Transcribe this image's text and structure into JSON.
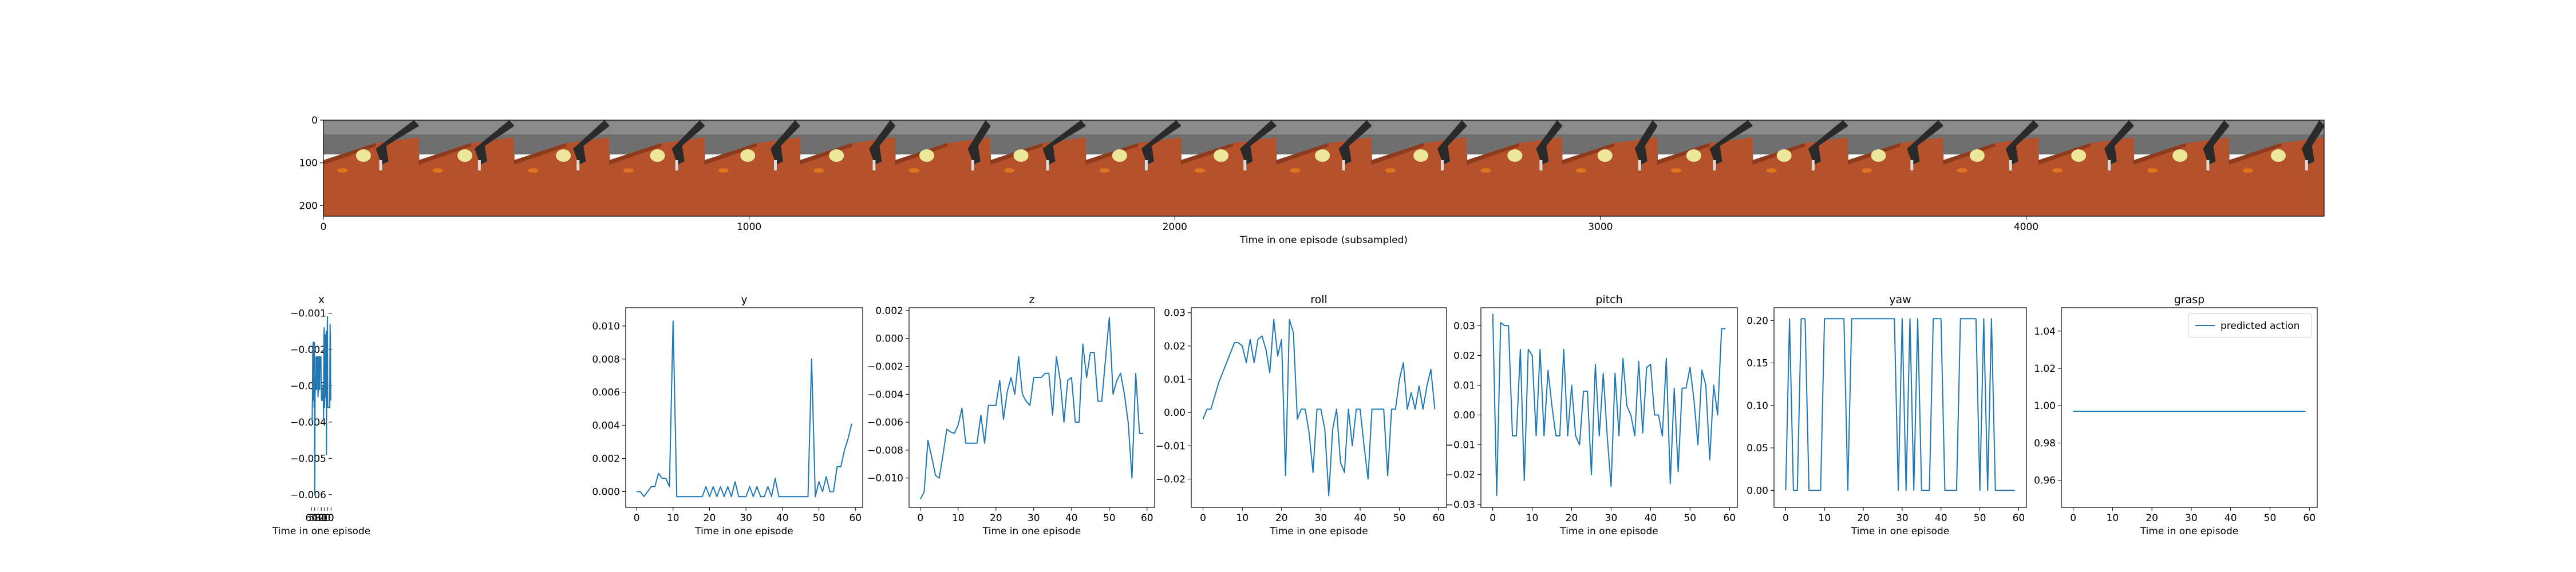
{
  "filmstrip": {
    "xlabel": "Time in one episode (subsampled)",
    "xticks": [
      0,
      1000,
      2000,
      3000,
      4000
    ],
    "yticks": [
      0,
      100,
      200
    ],
    "xlim": [
      0,
      4700
    ],
    "ylim": [
      225,
      0
    ],
    "frame_count": 21,
    "colors": {
      "wall": "#6f6f6f",
      "table": "#b5512b",
      "table_dark": "#8e3b1d",
      "robot": "#2a2a2a",
      "bowl": "#ede79a",
      "carrot": "#e0741f"
    }
  },
  "chart_data": [
    {
      "type": "line",
      "title": "x",
      "xlabel": "Time in one episode",
      "ylabel": "",
      "xlim": [
        -3,
        62
      ],
      "ylim": [
        -0.00635,
        -0.00085
      ],
      "xticks": [
        0,
        10,
        20,
        30,
        40,
        50,
        60
      ],
      "yticks": [
        -0.006,
        -0.005,
        -0.004,
        -0.003,
        -0.002,
        -0.001
      ],
      "yticklabels": [
        "−0.006",
        "−0.005",
        "−0.004",
        "−0.003",
        "−0.002",
        "−0.001"
      ],
      "x": [
        0,
        1,
        2,
        3,
        4,
        5,
        6,
        7,
        8,
        9,
        10,
        11,
        12,
        13,
        14,
        15,
        16,
        17,
        18,
        19,
        20,
        21,
        22,
        23,
        24,
        25,
        26,
        27,
        28,
        29,
        30,
        31,
        32,
        33,
        34,
        35,
        36,
        37,
        38,
        39,
        40,
        41,
        42,
        43,
        44,
        45,
        46,
        47,
        48,
        49,
        50,
        51,
        52,
        53,
        54,
        55,
        56,
        57,
        58,
        59
      ],
      "y": [
        -0.0034,
        -0.0034,
        -0.0017,
        -0.0013,
        -0.0036,
        -0.0036,
        -0.0036,
        -0.0036,
        -0.0036,
        -0.0036,
        -0.0036,
        -0.0011,
        -0.0016,
        -0.0016,
        -0.0049,
        -0.0015,
        -0.0033,
        -0.0031,
        -0.0016,
        -0.0033,
        -0.0036,
        -0.0014,
        -0.0016,
        -0.0039,
        -0.003,
        -0.003,
        -0.0034,
        -0.0034,
        -0.0034,
        -0.0034,
        -0.0031,
        -0.0022,
        -0.0022,
        -0.0022,
        -0.0022,
        -0.0031,
        -0.0031,
        -0.0022,
        -0.0022,
        -0.0031,
        -0.0033,
        -0.0022,
        -0.0022,
        -0.0022,
        -0.0031,
        -0.0031,
        -0.0022,
        -0.0031,
        -0.0031,
        -0.0032,
        -0.006,
        -0.0018,
        -0.0036,
        -0.003,
        -0.0034,
        -0.0018,
        -0.002,
        -0.0033,
        -0.004,
        -0.004
      ]
    },
    {
      "type": "line",
      "title": "y",
      "xlabel": "Time in one episode",
      "ylabel": "",
      "xlim": [
        -3,
        62
      ],
      "ylim": [
        -0.00095,
        0.0111
      ],
      "xticks": [
        0,
        10,
        20,
        30,
        40,
        50,
        60
      ],
      "yticks": [
        0.0,
        0.002,
        0.004,
        0.006,
        0.008,
        0.01
      ],
      "yticklabels": [
        "0.000",
        "0.002",
        "0.004",
        "0.006",
        "0.008",
        "0.010"
      ],
      "x": [
        0,
        1,
        2,
        3,
        4,
        5,
        6,
        7,
        8,
        9,
        10,
        11,
        12,
        13,
        14,
        15,
        16,
        17,
        18,
        19,
        20,
        21,
        22,
        23,
        24,
        25,
        26,
        27,
        28,
        29,
        30,
        31,
        32,
        33,
        34,
        35,
        36,
        37,
        38,
        39,
        40,
        41,
        42,
        43,
        44,
        45,
        46,
        47,
        48,
        49,
        50,
        51,
        52,
        53,
        54,
        55,
        56,
        57,
        58,
        59
      ],
      "y": [
        0.0,
        0.0,
        -0.0003,
        0.0,
        0.0003,
        0.0003,
        0.0011,
        0.0008,
        0.0008,
        0.0003,
        0.0103,
        -0.0003,
        -0.0003,
        -0.0003,
        -0.0003,
        -0.0003,
        -0.0003,
        -0.0003,
        -0.0003,
        0.0003,
        -0.0003,
        0.0003,
        -0.0003,
        0.0003,
        -0.0003,
        0.0003,
        -0.0003,
        0.0006,
        -0.0003,
        -0.0003,
        -0.0003,
        0.0003,
        -0.0003,
        0.0003,
        -0.0003,
        -0.0003,
        0.0003,
        -0.0003,
        0.0008,
        -0.0003,
        -0.0003,
        -0.0003,
        -0.0003,
        -0.0003,
        -0.0003,
        -0.0003,
        -0.0003,
        -0.0003,
        0.008,
        -0.0003,
        0.0006,
        0.0,
        0.0009,
        0.0,
        0.0,
        0.0015,
        0.0015,
        0.0025,
        0.0032,
        0.0041
      ]
    },
    {
      "type": "line",
      "title": "z",
      "xlabel": "Time in one episode",
      "ylabel": "",
      "xlim": [
        -3,
        62
      ],
      "ylim": [
        -0.0121,
        0.0022
      ],
      "xticks": [
        0,
        10,
        20,
        30,
        40,
        50,
        60
      ],
      "yticks": [
        -0.01,
        -0.008,
        -0.006,
        -0.004,
        -0.002,
        0.0,
        0.002
      ],
      "yticklabels": [
        "−0.010",
        "−0.008",
        "−0.006",
        "−0.004",
        "−0.002",
        "0.000",
        "0.002"
      ],
      "x": [
        0,
        1,
        2,
        3,
        4,
        5,
        6,
        7,
        8,
        9,
        10,
        11,
        12,
        13,
        14,
        15,
        16,
        17,
        18,
        19,
        20,
        21,
        22,
        23,
        24,
        25,
        26,
        27,
        28,
        29,
        30,
        31,
        32,
        33,
        34,
        35,
        36,
        37,
        38,
        39,
        40,
        41,
        42,
        43,
        44,
        45,
        46,
        47,
        48,
        49,
        50,
        51,
        52,
        53,
        54,
        55,
        56,
        57,
        58,
        59
      ],
      "y": [
        -0.0115,
        -0.011,
        -0.0073,
        -0.0085,
        -0.0098,
        -0.01,
        -0.0083,
        -0.0065,
        -0.0067,
        -0.0068,
        -0.0062,
        -0.005,
        -0.0075,
        -0.0075,
        -0.0075,
        -0.0075,
        -0.0055,
        -0.0075,
        -0.0048,
        -0.0048,
        -0.0048,
        -0.003,
        -0.0058,
        -0.0038,
        -0.0028,
        -0.004,
        -0.0013,
        -0.004,
        -0.0045,
        -0.0048,
        -0.0028,
        -0.0028,
        -0.0028,
        -0.0025,
        -0.0025,
        -0.0055,
        -0.0013,
        -0.003,
        -0.006,
        -0.003,
        -0.0028,
        -0.006,
        -0.006,
        -0.0004,
        -0.0028,
        -0.001,
        -0.001,
        -0.0045,
        -0.0045,
        -0.0015,
        0.0015,
        -0.004,
        -0.003,
        -0.0025,
        -0.004,
        -0.006,
        -0.01,
        -0.0025,
        -0.0068,
        -0.0068
      ]
    },
    {
      "type": "line",
      "title": "roll",
      "xlabel": "Time in one episode",
      "ylabel": "",
      "xlim": [
        -3,
        62
      ],
      "ylim": [
        -0.0285,
        0.0315
      ],
      "xticks": [
        0,
        10,
        20,
        30,
        40,
        50,
        60
      ],
      "yticks": [
        -0.02,
        -0.01,
        0.0,
        0.01,
        0.02,
        0.03
      ],
      "yticklabels": [
        "−0.02",
        "−0.01",
        "0.00",
        "0.01",
        "0.02",
        "0.03"
      ],
      "x": [
        0,
        1,
        2,
        3,
        4,
        5,
        6,
        7,
        8,
        9,
        10,
        11,
        12,
        13,
        14,
        15,
        16,
        17,
        18,
        19,
        20,
        21,
        22,
        23,
        24,
        25,
        26,
        27,
        28,
        29,
        30,
        31,
        32,
        33,
        34,
        35,
        36,
        37,
        38,
        39,
        40,
        41,
        42,
        43,
        44,
        45,
        46,
        47,
        48,
        49,
        50,
        51,
        52,
        53,
        54,
        55,
        56,
        57,
        58,
        59
      ],
      "y": [
        -0.002,
        0.001,
        0.001,
        0.005,
        0.009,
        0.012,
        0.015,
        0.018,
        0.021,
        0.021,
        0.02,
        0.015,
        0.022,
        0.015,
        0.022,
        0.023,
        0.019,
        0.012,
        0.028,
        0.017,
        0.022,
        -0.019,
        0.028,
        0.024,
        -0.002,
        0.001,
        0.001,
        -0.006,
        -0.018,
        0.001,
        0.001,
        -0.005,
        -0.025,
        -0.005,
        0.001,
        -0.015,
        -0.018,
        0.001,
        -0.01,
        0.001,
        0.001,
        -0.01,
        -0.02,
        0.001,
        0.001,
        0.001,
        0.001,
        -0.019,
        0.001,
        0.001,
        0.01,
        0.015,
        0.001,
        0.006,
        0.001,
        0.008,
        0.001,
        0.008,
        0.013,
        0.001
      ]
    },
    {
      "type": "line",
      "title": "pitch",
      "xlabel": "Time in one episode",
      "ylabel": "",
      "xlim": [
        -3,
        62
      ],
      "ylim": [
        -0.031,
        0.036
      ],
      "xticks": [
        0,
        10,
        20,
        30,
        40,
        50,
        60
      ],
      "yticks": [
        -0.03,
        -0.02,
        -0.01,
        0.0,
        0.01,
        0.02,
        0.03
      ],
      "yticklabels": [
        "−0.03",
        "−0.02",
        "−0.01",
        "0.00",
        "0.01",
        "0.02",
        "0.03"
      ],
      "x": [
        0,
        1,
        2,
        3,
        4,
        5,
        6,
        7,
        8,
        9,
        10,
        11,
        12,
        13,
        14,
        15,
        16,
        17,
        18,
        19,
        20,
        21,
        22,
        23,
        24,
        25,
        26,
        27,
        28,
        29,
        30,
        31,
        32,
        33,
        34,
        35,
        36,
        37,
        38,
        39,
        40,
        41,
        42,
        43,
        44,
        45,
        46,
        47,
        48,
        49,
        50,
        51,
        52,
        53,
        54,
        55,
        56,
        57,
        58,
        59
      ],
      "y": [
        0.034,
        -0.027,
        0.031,
        0.03,
        0.03,
        -0.007,
        -0.007,
        0.022,
        -0.022,
        0.022,
        0.02,
        -0.007,
        0.022,
        -0.007,
        0.015,
        0.003,
        -0.007,
        -0.007,
        0.022,
        -0.007,
        0.01,
        -0.007,
        -0.01,
        0.008,
        0.008,
        -0.02,
        0.017,
        -0.007,
        0.014,
        -0.007,
        -0.024,
        0.014,
        -0.007,
        0.019,
        0.003,
        0.0,
        -0.007,
        0.018,
        -0.006,
        0.016,
        0.017,
        0.0,
        0.0,
        -0.007,
        0.019,
        -0.023,
        0.009,
        -0.019,
        0.009,
        0.009,
        0.016,
        0.005,
        -0.01,
        0.015,
        0.01,
        -0.015,
        0.01,
        0.0,
        0.029,
        0.029
      ]
    },
    {
      "type": "line",
      "title": "yaw",
      "xlabel": "Time in one episode",
      "ylabel": "",
      "xlim": [
        -3,
        62
      ],
      "ylim": [
        -0.02,
        0.215
      ],
      "xticks": [
        0,
        10,
        20,
        30,
        40,
        50,
        60
      ],
      "yticks": [
        0.0,
        0.05,
        0.1,
        0.15,
        0.2
      ],
      "yticklabels": [
        "0.00",
        "0.05",
        "0.10",
        "0.15",
        "0.20"
      ],
      "x": [
        0,
        1,
        2,
        3,
        4,
        5,
        6,
        7,
        8,
        9,
        10,
        11,
        12,
        13,
        14,
        15,
        16,
        17,
        18,
        19,
        20,
        21,
        22,
        23,
        24,
        25,
        26,
        27,
        28,
        29,
        30,
        31,
        32,
        33,
        34,
        35,
        36,
        37,
        38,
        39,
        40,
        41,
        42,
        43,
        44,
        45,
        46,
        47,
        48,
        49,
        50,
        51,
        52,
        53,
        54,
        55,
        56,
        57,
        58,
        59
      ],
      "y": [
        0.0,
        0.202,
        0.0,
        0.0,
        0.202,
        0.202,
        0.0,
        0.0,
        0.0,
        0.0,
        0.202,
        0.202,
        0.202,
        0.202,
        0.202,
        0.202,
        0.0,
        0.202,
        0.202,
        0.202,
        0.202,
        0.202,
        0.202,
        0.202,
        0.202,
        0.202,
        0.202,
        0.202,
        0.202,
        0.0,
        0.202,
        0.0,
        0.202,
        0.0,
        0.202,
        0.0,
        0.0,
        0.0,
        0.202,
        0.202,
        0.202,
        0.0,
        0.0,
        0.0,
        0.0,
        0.202,
        0.202,
        0.202,
        0.202,
        0.202,
        0.0,
        0.202,
        0.0,
        0.202,
        0.0,
        0.0,
        0.0,
        0.0,
        0.0,
        0.0
      ]
    },
    {
      "type": "line",
      "title": "grasp",
      "xlabel": "Time in one episode",
      "ylabel": "",
      "xlim": [
        -3,
        62
      ],
      "ylim": [
        0.9455,
        1.0525
      ],
      "xticks": [
        0,
        10,
        20,
        30,
        40,
        50,
        60
      ],
      "yticks": [
        0.96,
        0.98,
        1.0,
        1.02,
        1.04
      ],
      "yticklabels": [
        "0.96",
        "0.98",
        "1.00",
        "1.02",
        "1.04"
      ],
      "x": [
        0,
        59
      ],
      "y": [
        0.997,
        0.997
      ],
      "legend": {
        "label": "predicted action",
        "loc": "upper right"
      }
    }
  ],
  "colors": {
    "line": "#1f77b4",
    "axis": "#000000"
  }
}
